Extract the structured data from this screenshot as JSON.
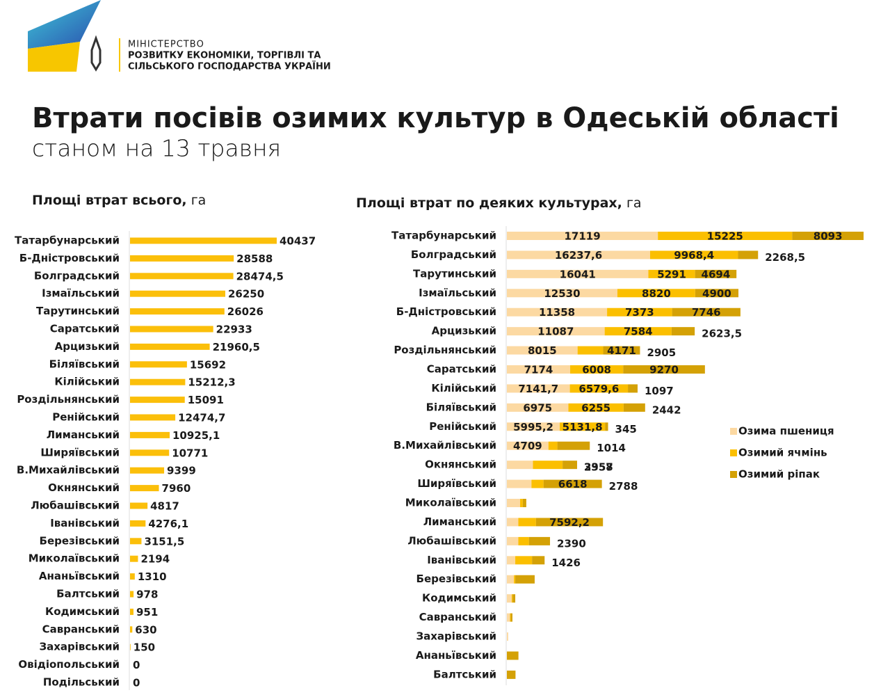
{
  "header": {
    "ministry": [
      "МІНІСТЕРСТВО",
      "РОЗВИТКУ ЕКОНОМІКИ, ТОРГІВЛІ ТА",
      "СІЛЬСЬКОГО ГОСПОДАРСТВА УКРАЇНИ"
    ],
    "title": "Втрати посівів озимих культур в Одеській області",
    "subtitle": "станом на 13 травня"
  },
  "chart_data": [
    {
      "type": "bar",
      "orientation": "horizontal",
      "title": "Площі втрат всього,",
      "unit": "га",
      "color": "#fbbf0a",
      "categories": [
        "Татарбунарський",
        "Б-Дністровський",
        "Болградський",
        "Ізмаїльський",
        "Тарутинський",
        "Саратський",
        "Арцизький",
        "Біляївський",
        "Кілійський",
        "Роздільнянський",
        "Ренійський",
        "Лиманський",
        "Ширяївський",
        "В.Михайлівський",
        "Окнянський",
        "Любашівський",
        "Іванівський",
        "Березівський",
        "Миколаївський",
        "Ананьївський",
        "Балтський",
        "Кодимський",
        "Савранський",
        "Захарівський",
        "Овідіопольський",
        "Подільський"
      ],
      "values": [
        40437,
        28588,
        28474.5,
        26250,
        26026,
        22933,
        21960.5,
        15692,
        15212.3,
        15091,
        12474.7,
        10925.1,
        10771,
        9399,
        7960,
        4817,
        4276.1,
        3151.5,
        2194,
        1310,
        978,
        951,
        630,
        150,
        0,
        0
      ],
      "value_labels": [
        "40437",
        "28588",
        "28474,5",
        "26250",
        "26026",
        "22933",
        "21960,5",
        "15692",
        "15212,3",
        "15091",
        "12474,7",
        "10925,1",
        "10771",
        "9399",
        "7960",
        "4817",
        "4276,1",
        "3151,5",
        "2194",
        "1310",
        "978",
        "951",
        "630",
        "150",
        "0",
        "0"
      ]
    },
    {
      "type": "bar",
      "orientation": "horizontal",
      "stacked": true,
      "title": "Площі втрат по деяких культурах,",
      "unit": "га",
      "legend": "right",
      "categories": [
        "Татарбунарський",
        "Болградський",
        "Тарутинський",
        "Ізмаїльський",
        "Б-Дністровський",
        "Арцизький",
        "Роздільнянський",
        "Саратський",
        "Кілійський",
        "Біляївський",
        "Ренійський",
        "В.Михайлівський",
        "Окнянський",
        "Ширяївський",
        "Миколаївський",
        "Лиманський",
        "Любашівський",
        "Іванівський",
        "Березівський",
        "Кодимський",
        "Савранський",
        "Захарівський",
        "Ананьївський",
        "Балтський"
      ],
      "series": [
        {
          "name": "Озима пшениця",
          "color": "#fcd9a2",
          "values": [
            17119,
            16237.6,
            16041,
            12530,
            11358,
            11087,
            8015,
            7174,
            7141.7,
            6975,
            5995.2,
            4709,
            2957,
            2788,
            1500,
            1300,
            1300,
            950,
            800,
            550,
            350,
            150,
            0,
            0
          ],
          "value_labels": [
            "17119",
            "16237,6",
            "16041",
            "12530",
            "11358",
            "11087",
            "8015",
            "7174",
            "7141,7",
            "6975",
            "5995,2",
            "4709",
            "2957",
            "2788",
            null,
            null,
            null,
            null,
            null,
            null,
            null,
            null,
            null,
            null
          ]
        },
        {
          "name": "Озимий ячмінь",
          "color": "#fbbf00",
          "values": [
            15225,
            9968.4,
            5291,
            8820,
            7373,
            7584,
            2905,
            6008,
            6579.6,
            6255,
            5131.8,
            1014,
            3358,
            1365,
            300,
            2000,
            1200,
            1900,
            150,
            100,
            80,
            0,
            0,
            0
          ],
          "value_labels": [
            "15225",
            "9968,4",
            "5291",
            "8820",
            "7373",
            "7584",
            "2905",
            "6008",
            "6579,6",
            "6255",
            "5131,8",
            "1014",
            "3358",
            null,
            null,
            null,
            null,
            null,
            null,
            null,
            null,
            null,
            null,
            null
          ]
        },
        {
          "name": "Озимий ріпак",
          "color": "#d4a106",
          "values": [
            8093,
            2268.5,
            4694,
            4900,
            7746,
            2623.5,
            4171,
            9270,
            1097,
            2442,
            345,
            3676,
            1645,
            6618,
            400,
            7592.2,
            2390,
            1426,
            2200,
            300,
            200,
            0,
            1310,
            978
          ],
          "value_labels": [
            "8093",
            "2268,5",
            "4694",
            "4900",
            "7746",
            "2623,5",
            "4171",
            "9270",
            "1097",
            "2442",
            "345",
            null,
            null,
            "6618",
            null,
            "7592,2",
            "2390",
            "1426",
            null,
            null,
            null,
            null,
            null,
            null
          ]
        }
      ]
    }
  ]
}
